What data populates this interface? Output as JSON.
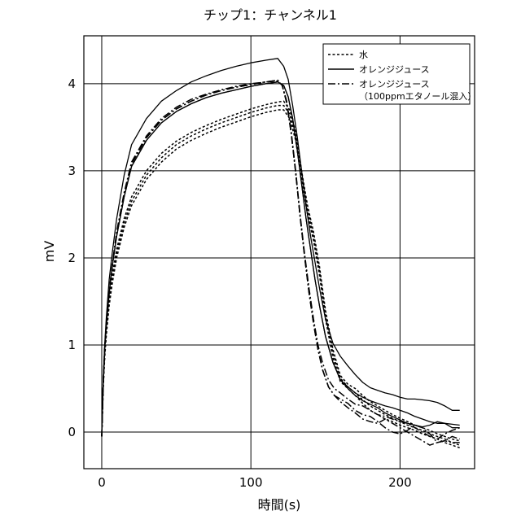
{
  "chart_data": {
    "type": "line",
    "title": "チップ1：チャンネル1",
    "xlabel": "時間(s)",
    "ylabel": "mV",
    "xlim": [
      -12,
      250
    ],
    "ylim": [
      -0.42,
      4.55
    ],
    "xticks": [
      0,
      100,
      200
    ],
    "yticks": [
      0,
      1,
      2,
      3,
      4
    ],
    "grid": true,
    "legend_position": "top-right",
    "legend": [
      {
        "label": "水",
        "style": "dotted"
      },
      {
        "label": "オレンジジュース",
        "style": "solid"
      },
      {
        "label": "オレンジジュース",
        "label2": "（100ppmエタノール混入）",
        "style": "dashdot"
      }
    ],
    "series": [
      {
        "legend_index": 0,
        "style": "dotted",
        "x": [
          0,
          1,
          2,
          3,
          5,
          7,
          10,
          15,
          20,
          30,
          40,
          50,
          60,
          70,
          80,
          90,
          100,
          110,
          118,
          122,
          126,
          130,
          134,
          138,
          142,
          146,
          150,
          155,
          160,
          165,
          170,
          175,
          180,
          185,
          190,
          195,
          200,
          205,
          210,
          215,
          220,
          225,
          230,
          235,
          240
        ],
        "y": [
          -0.05,
          0.5,
          0.85,
          1.1,
          1.45,
          1.7,
          2.0,
          2.35,
          2.6,
          2.9,
          3.1,
          3.25,
          3.35,
          3.43,
          3.5,
          3.56,
          3.62,
          3.67,
          3.7,
          3.7,
          3.6,
          3.35,
          2.9,
          2.5,
          2.2,
          1.8,
          1.3,
          0.85,
          0.58,
          0.5,
          0.42,
          0.33,
          0.25,
          0.2,
          0.15,
          0.12,
          0.08,
          0.05,
          0.02,
          -0.02,
          -0.05,
          -0.08,
          -0.12,
          -0.15,
          -0.18
        ]
      },
      {
        "legend_index": 0,
        "style": "dotted",
        "x": [
          0,
          1,
          2,
          3,
          5,
          7,
          10,
          15,
          20,
          30,
          40,
          50,
          60,
          70,
          80,
          90,
          100,
          110,
          118,
          122,
          126,
          130,
          134,
          138,
          142,
          146,
          150,
          155,
          160,
          165,
          170,
          175,
          180,
          185,
          190,
          195,
          200,
          205,
          210,
          215,
          220,
          225,
          230,
          235,
          240
        ],
        "y": [
          -0.05,
          0.52,
          0.88,
          1.13,
          1.5,
          1.75,
          2.05,
          2.4,
          2.65,
          2.95,
          3.15,
          3.3,
          3.4,
          3.48,
          3.55,
          3.61,
          3.67,
          3.72,
          3.75,
          3.75,
          3.65,
          3.4,
          2.95,
          2.55,
          2.25,
          1.85,
          1.35,
          0.9,
          0.62,
          0.52,
          0.45,
          0.37,
          0.3,
          0.25,
          0.2,
          0.16,
          0.12,
          0.08,
          0.05,
          0.02,
          -0.02,
          -0.05,
          -0.08,
          -0.12,
          -0.15
        ]
      },
      {
        "legend_index": 0,
        "style": "dotted",
        "x": [
          0,
          1,
          2,
          3,
          5,
          7,
          10,
          15,
          20,
          30,
          40,
          50,
          60,
          70,
          80,
          90,
          100,
          110,
          118,
          122,
          126,
          130,
          134,
          138,
          142,
          146,
          150,
          155,
          160,
          165,
          170,
          175,
          180,
          185,
          190,
          195,
          200,
          205,
          210,
          215,
          220,
          225,
          230,
          235,
          240
        ],
        "y": [
          -0.05,
          0.54,
          0.9,
          1.15,
          1.55,
          1.8,
          2.1,
          2.45,
          2.7,
          3.0,
          3.2,
          3.34,
          3.44,
          3.52,
          3.59,
          3.65,
          3.71,
          3.76,
          3.79,
          3.8,
          3.7,
          3.45,
          3.0,
          2.6,
          2.3,
          1.9,
          1.4,
          0.95,
          0.65,
          0.55,
          0.5,
          0.42,
          0.35,
          0.3,
          0.25,
          0.2,
          0.16,
          0.12,
          0.08,
          0.05,
          0.02,
          -0.02,
          -0.05,
          -0.08,
          -0.1
        ]
      },
      {
        "legend_index": 1,
        "style": "solid",
        "x": [
          0,
          1,
          2,
          3,
          5,
          7,
          10,
          15,
          20,
          30,
          40,
          50,
          60,
          70,
          80,
          90,
          100,
          110,
          118,
          122,
          125,
          128,
          131,
          134,
          137,
          140,
          143,
          146,
          150,
          155,
          160,
          165,
          170,
          175,
          180,
          185,
          190,
          195,
          200,
          205,
          210,
          215,
          220,
          225,
          230,
          235,
          240
        ],
        "y": [
          -0.05,
          0.6,
          1.0,
          1.3,
          1.75,
          2.05,
          2.45,
          2.95,
          3.3,
          3.6,
          3.8,
          3.92,
          4.02,
          4.09,
          4.15,
          4.2,
          4.24,
          4.27,
          4.29,
          4.2,
          4.05,
          3.75,
          3.4,
          3.0,
          2.6,
          2.25,
          1.95,
          1.65,
          1.3,
          1.02,
          0.87,
          0.76,
          0.66,
          0.57,
          0.51,
          0.48,
          0.45,
          0.43,
          0.4,
          0.38,
          0.38,
          0.37,
          0.36,
          0.34,
          0.3,
          0.25,
          0.25
        ]
      },
      {
        "legend_index": 1,
        "style": "solid",
        "x": [
          0,
          1,
          2,
          3,
          5,
          7,
          10,
          15,
          20,
          30,
          40,
          50,
          60,
          70,
          80,
          90,
          100,
          110,
          118,
          122,
          125,
          128,
          131,
          134,
          137,
          140,
          143,
          146,
          150,
          155,
          160,
          165,
          170,
          175,
          180,
          185,
          190,
          195,
          200,
          205,
          210,
          215,
          220,
          225,
          230,
          235,
          240
        ],
        "y": [
          -0.05,
          0.58,
          0.95,
          1.22,
          1.6,
          1.9,
          2.25,
          2.7,
          3.05,
          3.35,
          3.55,
          3.68,
          3.77,
          3.84,
          3.89,
          3.93,
          3.97,
          4.0,
          4.02,
          3.98,
          3.85,
          3.6,
          3.25,
          2.85,
          2.45,
          2.1,
          1.75,
          1.45,
          1.1,
          0.8,
          0.6,
          0.52,
          0.45,
          0.4,
          0.36,
          0.33,
          0.3,
          0.28,
          0.25,
          0.22,
          0.18,
          0.15,
          0.12,
          0.1,
          0.1,
          0.09,
          0.08
        ]
      },
      {
        "legend_index": 1,
        "style": "solid",
        "x": [
          0,
          1,
          2,
          3,
          5,
          7,
          10,
          15,
          20,
          30,
          40,
          50,
          60,
          70,
          80,
          90,
          100,
          110,
          118,
          122,
          125,
          128,
          131,
          134,
          137,
          140,
          143,
          146,
          150,
          155,
          160,
          165,
          170,
          175,
          180,
          185,
          190,
          195,
          200,
          205,
          210,
          215,
          220,
          225,
          230,
          235,
          240
        ],
        "y": [
          -0.05,
          0.58,
          0.95,
          1.22,
          1.6,
          1.9,
          2.25,
          2.7,
          3.05,
          3.35,
          3.55,
          3.68,
          3.77,
          3.84,
          3.89,
          3.93,
          3.97,
          4.0,
          4.02,
          3.98,
          3.85,
          3.6,
          3.25,
          2.85,
          2.45,
          2.1,
          1.75,
          1.45,
          1.1,
          0.8,
          0.6,
          0.5,
          0.42,
          0.36,
          0.32,
          0.28,
          0.22,
          0.18,
          0.14,
          0.1,
          0.08,
          0.06,
          0.08,
          0.12,
          0.1,
          0.05,
          0.05
        ]
      },
      {
        "legend_index": 2,
        "style": "dashdot",
        "x": [
          0,
          1,
          2,
          3,
          5,
          7,
          10,
          15,
          20,
          30,
          40,
          50,
          60,
          70,
          80,
          90,
          100,
          110,
          118,
          121,
          124,
          127,
          130,
          133,
          136,
          139,
          142,
          145,
          148,
          152,
          156,
          160,
          165,
          170,
          175,
          180,
          185,
          190,
          195,
          200,
          205,
          210,
          215,
          220,
          225,
          230,
          235,
          240
        ],
        "y": [
          -0.05,
          0.58,
          0.96,
          1.24,
          1.62,
          1.92,
          2.3,
          2.75,
          3.1,
          3.4,
          3.6,
          3.73,
          3.82,
          3.88,
          3.93,
          3.97,
          4.0,
          4.02,
          4.03,
          3.98,
          3.8,
          3.45,
          3.0,
          2.5,
          2.05,
          1.65,
          1.3,
          1.0,
          0.8,
          0.6,
          0.5,
          0.45,
          0.38,
          0.32,
          0.3,
          0.25,
          0.2,
          0.18,
          0.15,
          0.12,
          0.1,
          0.05,
          0.0,
          -0.05,
          -0.08,
          -0.02,
          0.02,
          0.05
        ]
      },
      {
        "legend_index": 2,
        "style": "dashdot",
        "x": [
          0,
          1,
          2,
          3,
          5,
          7,
          10,
          15,
          20,
          30,
          40,
          50,
          60,
          70,
          80,
          90,
          100,
          110,
          118,
          121,
          124,
          127,
          130,
          133,
          136,
          139,
          142,
          145,
          148,
          152,
          156,
          160,
          165,
          170,
          175,
          180,
          185,
          190,
          195,
          200,
          205,
          210,
          215,
          220,
          225,
          230,
          235,
          240
        ],
        "y": [
          -0.05,
          0.57,
          0.95,
          1.22,
          1.6,
          1.9,
          2.28,
          2.73,
          3.08,
          3.38,
          3.58,
          3.71,
          3.8,
          3.87,
          3.92,
          3.96,
          3.99,
          4.02,
          4.04,
          3.98,
          3.78,
          3.43,
          2.98,
          2.48,
          2.02,
          1.6,
          1.25,
          0.95,
          0.72,
          0.52,
          0.42,
          0.38,
          0.33,
          0.25,
          0.2,
          0.18,
          0.12,
          0.05,
          0.0,
          -0.02,
          0.02,
          0.08,
          0.05,
          -0.02,
          -0.12,
          -0.1,
          -0.05,
          -0.08
        ]
      },
      {
        "legend_index": 2,
        "style": "dashdot",
        "x": [
          0,
          1,
          2,
          3,
          5,
          7,
          10,
          15,
          20,
          30,
          40,
          50,
          60,
          70,
          80,
          90,
          100,
          110,
          118,
          121,
          124,
          127,
          130,
          133,
          136,
          139,
          142,
          145,
          148,
          152,
          156,
          160,
          165,
          170,
          175,
          180,
          185,
          190,
          195,
          200,
          205,
          210,
          215,
          220,
          225,
          230,
          235,
          240
        ],
        "y": [
          -0.05,
          0.57,
          0.95,
          1.22,
          1.6,
          1.9,
          2.28,
          2.73,
          3.08,
          3.38,
          3.58,
          3.71,
          3.8,
          3.87,
          3.92,
          3.96,
          3.99,
          4.02,
          4.04,
          3.98,
          3.78,
          3.43,
          2.98,
          2.48,
          2.02,
          1.6,
          1.25,
          0.95,
          0.72,
          0.52,
          0.42,
          0.35,
          0.28,
          0.22,
          0.15,
          0.12,
          0.1,
          0.15,
          0.1,
          0.05,
          0.0,
          -0.05,
          -0.1,
          -0.15,
          -0.12,
          -0.1,
          -0.12,
          -0.12
        ]
      }
    ]
  }
}
